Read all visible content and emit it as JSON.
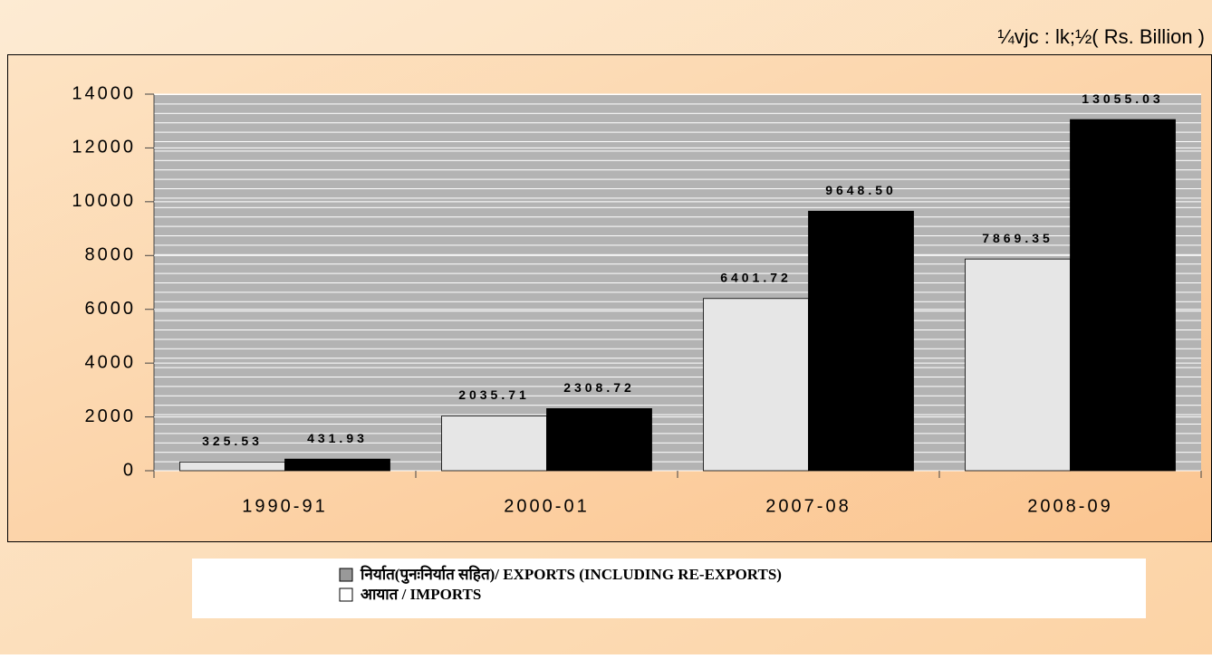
{
  "unit": "¼vjc : lk;½( Rs. Billion )",
  "chart_data": {
    "type": "bar",
    "categories": [
      "1990-91",
      "2000-01",
      "2007-08",
      "2008-09"
    ],
    "series": [
      {
        "name": "निर्यात(पुनःनिर्यात सहित)/ EXPORTS (INCLUDING RE-EXPORTS)",
        "color": "#e6e6e6",
        "values": [
          325.53,
          2035.71,
          6401.72,
          7869.35
        ],
        "value_labels": [
          "325.53",
          "2035.71",
          "6401.72",
          "7869.35"
        ]
      },
      {
        "name": "आयात / IMPORTS",
        "color": "#000000",
        "values": [
          431.93,
          2308.72,
          9648.5,
          13055.03
        ],
        "value_labels": [
          "431.93",
          "2308.72",
          "9648.50",
          "13055.03"
        ]
      }
    ],
    "ylim": [
      0,
      14000
    ],
    "yticks": [
      0,
      2000,
      4000,
      6000,
      8000,
      10000,
      12000,
      14000
    ],
    "grid": true
  }
}
